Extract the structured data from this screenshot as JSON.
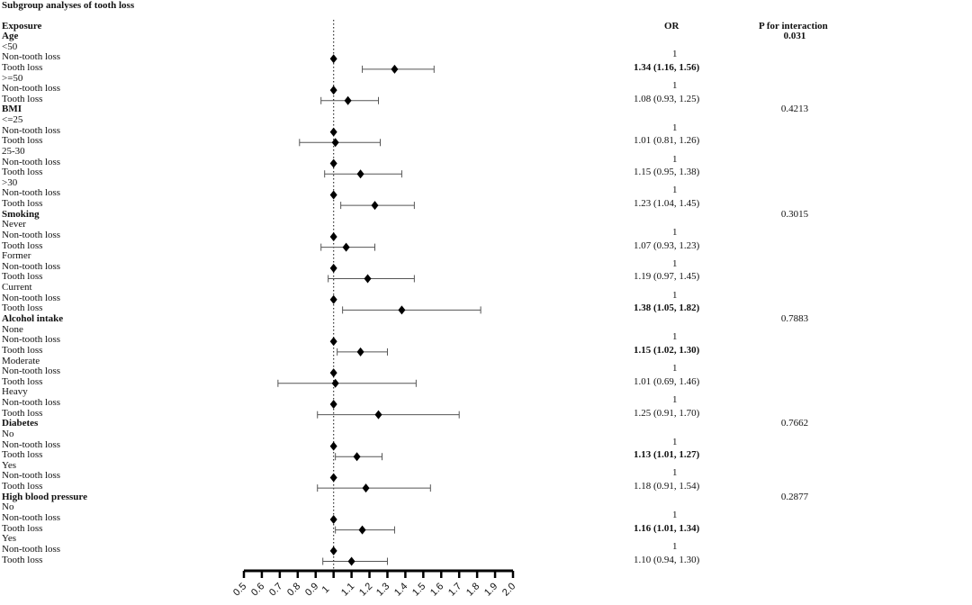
{
  "chart_data": {
    "type": "forest",
    "title": "Subgroup analyses of tooth loss",
    "col_exposure": "Exposure",
    "col_or": "OR",
    "col_p": "P for interaction",
    "reference_line": 1,
    "xlim": [
      0.5,
      2.0
    ],
    "xticks": [
      "0.5",
      "0.6",
      "0.7",
      "0.8",
      "0.9",
      "1",
      "1.1",
      "1.2",
      "1.3",
      "1.4",
      "1.5",
      "1.6",
      "1.7",
      "1.8",
      "1.9",
      "2.0"
    ],
    "rows": [
      {
        "label": "Age",
        "bold": true,
        "p": "0.031",
        "p_bold": true
      },
      {
        "label": "<50"
      },
      {
        "label": "Non-tooth loss",
        "or_text": "1",
        "est": 1
      },
      {
        "label": "Tooth loss",
        "or_text": "1.34 (1.16, 1.56)",
        "or_bold": true,
        "est": 1.34,
        "lo": 1.16,
        "hi": 1.56
      },
      {
        "label": ">=50"
      },
      {
        "label": "Non-tooth loss",
        "or_text": "1",
        "est": 1
      },
      {
        "label": "Tooth loss",
        "or_text": "1.08 (0.93, 1.25)",
        "est": 1.08,
        "lo": 0.93,
        "hi": 1.25
      },
      {
        "label": "BMI",
        "bold": true,
        "p": "0.4213"
      },
      {
        "label": "<=25"
      },
      {
        "label": "Non-tooth loss",
        "or_text": "1",
        "est": 1
      },
      {
        "label": "Tooth loss",
        "or_text": "1.01 (0.81, 1.26)",
        "est": 1.01,
        "lo": 0.81,
        "hi": 1.26
      },
      {
        "label": "25-30"
      },
      {
        "label": "Non-tooth loss",
        "or_text": "1",
        "est": 1
      },
      {
        "label": "Tooth loss",
        "or_text": "1.15 (0.95, 1.38)",
        "est": 1.15,
        "lo": 0.95,
        "hi": 1.38
      },
      {
        "label": ">30"
      },
      {
        "label": "Non-tooth loss",
        "or_text": "1",
        "est": 1
      },
      {
        "label": "Tooth loss",
        "or_text": "1.23 (1.04, 1.45)",
        "est": 1.23,
        "lo": 1.04,
        "hi": 1.45
      },
      {
        "label": "Smoking",
        "bold": true,
        "p": "0.3015"
      },
      {
        "label": "Never"
      },
      {
        "label": "Non-tooth loss",
        "or_text": "1",
        "est": 1
      },
      {
        "label": "Tooth loss",
        "or_text": "1.07 (0.93, 1.23)",
        "est": 1.07,
        "lo": 0.93,
        "hi": 1.23
      },
      {
        "label": "Former"
      },
      {
        "label": "Non-tooth loss",
        "or_text": "1",
        "est": 1
      },
      {
        "label": "Tooth loss",
        "or_text": "1.19 (0.97, 1.45)",
        "est": 1.19,
        "lo": 0.97,
        "hi": 1.45
      },
      {
        "label": "Current"
      },
      {
        "label": "Non-tooth loss",
        "or_text": "1",
        "est": 1
      },
      {
        "label": "Tooth loss",
        "or_text": "1.38 (1.05, 1.82)",
        "or_bold": true,
        "est": 1.38,
        "lo": 1.05,
        "hi": 1.82
      },
      {
        "label": "Alcohol intake",
        "bold": true,
        "p": "0.7883"
      },
      {
        "label": "None"
      },
      {
        "label": "Non-tooth loss",
        "or_text": "1",
        "est": 1
      },
      {
        "label": "Tooth loss",
        "or_text": "1.15 (1.02, 1.30)",
        "or_bold": true,
        "est": 1.15,
        "lo": 1.02,
        "hi": 1.3
      },
      {
        "label": "Moderate"
      },
      {
        "label": "Non-tooth loss",
        "or_text": "1",
        "est": 1
      },
      {
        "label": "Tooth loss",
        "or_text": "1.01 (0.69, 1.46)",
        "est": 1.01,
        "lo": 0.69,
        "hi": 1.46
      },
      {
        "label": "Heavy"
      },
      {
        "label": "Non-tooth loss",
        "or_text": "1",
        "est": 1
      },
      {
        "label": "Tooth loss",
        "or_text": "1.25 (0.91, 1.70)",
        "est": 1.25,
        "lo": 0.91,
        "hi": 1.7
      },
      {
        "label": "Diabetes",
        "bold": true,
        "p": "0.7662"
      },
      {
        "label": "No"
      },
      {
        "label": "Non-tooth loss",
        "or_text": "1",
        "est": 1
      },
      {
        "label": "Tooth loss",
        "or_text": "1.13 (1.01, 1.27)",
        "or_bold": true,
        "est": 1.13,
        "lo": 1.01,
        "hi": 1.27
      },
      {
        "label": "Yes"
      },
      {
        "label": "Non-tooth loss",
        "or_text": "1",
        "est": 1
      },
      {
        "label": "Tooth loss",
        "or_text": "1.18 (0.91, 1.54)",
        "est": 1.18,
        "lo": 0.91,
        "hi": 1.54
      },
      {
        "label": "High blood pressure",
        "bold": true,
        "p": "0.2877"
      },
      {
        "label": "No"
      },
      {
        "label": "Non-tooth loss",
        "or_text": "1",
        "est": 1
      },
      {
        "label": "Tooth loss",
        "or_text": "1.16 (1.01, 1.34)",
        "or_bold": true,
        "est": 1.16,
        "lo": 1.01,
        "hi": 1.34
      },
      {
        "label": "Yes"
      },
      {
        "label": "Non-tooth loss",
        "or_text": "1",
        "est": 1
      },
      {
        "label": "Tooth loss",
        "or_text": "1.10 (0.94, 1.30)",
        "est": 1.1,
        "lo": 0.94,
        "hi": 1.3
      }
    ]
  }
}
